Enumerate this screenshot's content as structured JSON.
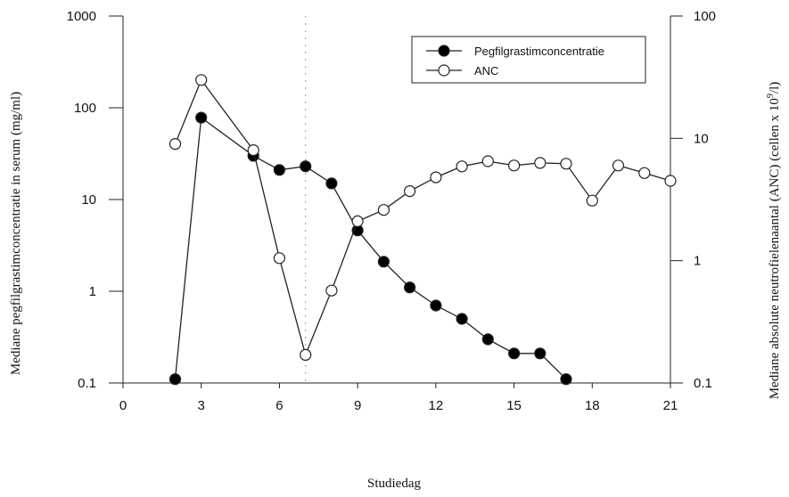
{
  "chart_data": {
    "type": "line",
    "xlabel": "Studiedag",
    "ylabel_left": "Mediane pegfilgrastimconcentratie in serum (mg/ml)",
    "ylabel_right": "Mediane absolute neutrofielenaantal (ANC) (cellen x 10",
    "ylabel_right_sup": "9",
    "ylabel_right_suffix": "/l)",
    "x_ticks": [
      "0",
      "3",
      "6",
      "9",
      "12",
      "15",
      "18",
      "21"
    ],
    "x_tick_values": [
      0,
      3,
      6,
      9,
      12,
      15,
      18,
      21
    ],
    "xlim": [
      0,
      21
    ],
    "y_left_ticks": [
      "1000",
      "100",
      "10",
      "1",
      "0.1"
    ],
    "y_left_tick_values": [
      1000,
      100,
      10,
      1,
      0.1
    ],
    "ylim_left": [
      0.1,
      1000
    ],
    "y_left_scale": "log",
    "y_right_ticks": [
      "100",
      "10",
      "1",
      "0.1"
    ],
    "y_right_tick_values": [
      100,
      10,
      1,
      0.1
    ],
    "ylim_right": [
      0.1,
      100
    ],
    "y_right_scale": "log",
    "vertical_reference_x": 7,
    "legend_position": "top-right",
    "series": [
      {
        "name": "Pegfilgrastimconcentratie",
        "axis": "left",
        "marker": "filled",
        "x": [
          2,
          3,
          5,
          6,
          7,
          8,
          9,
          10,
          11,
          12,
          13,
          14,
          15,
          16,
          17
        ],
        "y": [
          0.11,
          78,
          30,
          21,
          23,
          15,
          4.6,
          2.1,
          1.1,
          0.7,
          0.5,
          0.3,
          0.21,
          0.21,
          0.11
        ]
      },
      {
        "name": "ANC",
        "axis": "right",
        "marker": "open",
        "x": [
          2,
          3,
          5,
          6,
          7,
          8,
          9,
          10,
          11,
          12,
          13,
          14,
          15,
          16,
          17,
          18,
          19,
          20,
          21
        ],
        "y": [
          9,
          30,
          8,
          1.05,
          0.17,
          0.57,
          2.1,
          2.6,
          3.7,
          4.8,
          5.9,
          6.5,
          6.0,
          6.3,
          6.2,
          3.1,
          6.0,
          5.2,
          4.5
        ]
      }
    ]
  }
}
